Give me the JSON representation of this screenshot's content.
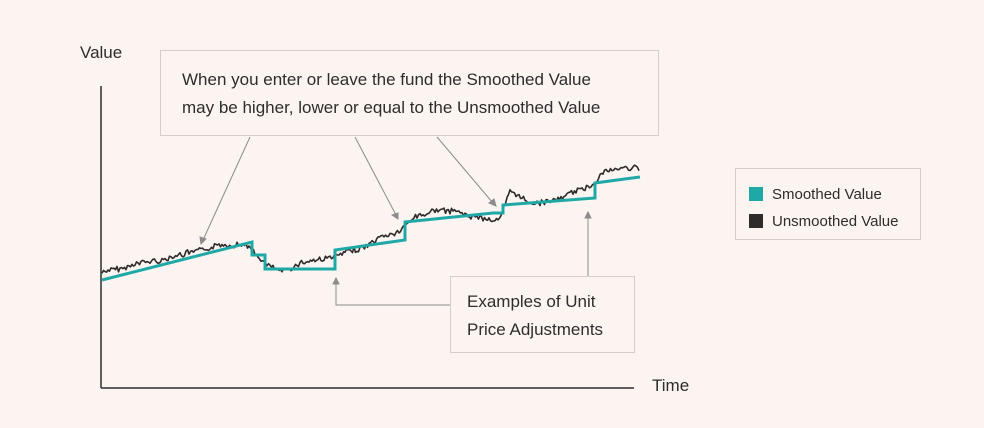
{
  "axes": {
    "y_label": "Value",
    "x_label": "Time"
  },
  "callouts": {
    "top_lines": [
      "When you enter or leave the fund the Smoothed Value",
      "may be higher, lower or equal to the Unsmoothed Value"
    ],
    "bottom_lines": [
      "Examples of Unit",
      "Price Adjustments"
    ]
  },
  "legend": {
    "items": [
      {
        "label": "Smoothed Value",
        "color": "#1fa9a6"
      },
      {
        "label": "Unsmoothed Value",
        "color": "#2f2b2b"
      }
    ]
  },
  "colors": {
    "smoothed": "#1fa9a6",
    "unsmoothed": "#2f2b2b",
    "axis": "#2d2d2d",
    "pointer": "#8c8c8c"
  }
}
